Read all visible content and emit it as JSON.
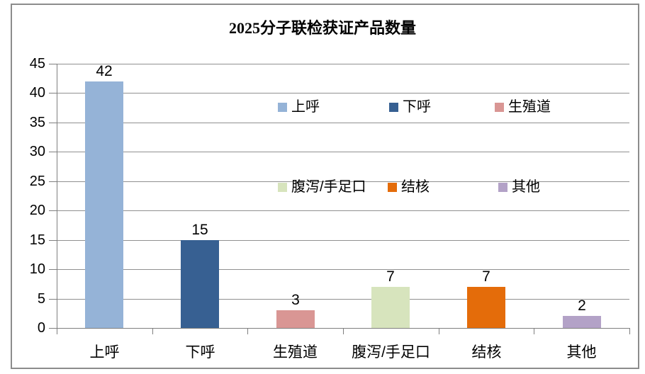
{
  "chart_data": {
    "type": "bar",
    "title": "2025分子联检获证产品数量",
    "categories": [
      "上呼",
      "下呼",
      "生殖道",
      "腹泻/手足口",
      "结核",
      "其他"
    ],
    "values": [
      42,
      15,
      3,
      7,
      7,
      2
    ],
    "bar_colors": [
      "#95B3D7",
      "#376092",
      "#D99694",
      "#D7E4BD",
      "#E46C0A",
      "#B3A2C7"
    ],
    "value_labels": [
      "42",
      "15",
      "3",
      "7",
      "7",
      "2"
    ],
    "xlabel": "",
    "ylabel": "",
    "ylim": [
      0,
      45
    ],
    "ytick_step": 5,
    "yticks": [
      "0",
      "5",
      "10",
      "15",
      "20",
      "25",
      "30",
      "35",
      "40",
      "45"
    ],
    "grid": true,
    "legend_position": "inside-plot-two-rows",
    "legend_entries": [
      {
        "label": "上呼",
        "color": "#95B3D7"
      },
      {
        "label": "下呼",
        "color": "#376092"
      },
      {
        "label": "生殖道",
        "color": "#D99694"
      },
      {
        "label": "腹泻/手足口",
        "color": "#D7E4BD"
      },
      {
        "label": "结核",
        "color": "#E46C0A"
      },
      {
        "label": "其他",
        "color": "#B3A2C7"
      }
    ],
    "style_colors": {
      "gridline": "#909090",
      "axis": "#7F7F7F",
      "frame_border": "#8C8C8C",
      "text": "#000000",
      "background": "#FFFFFF"
    }
  }
}
